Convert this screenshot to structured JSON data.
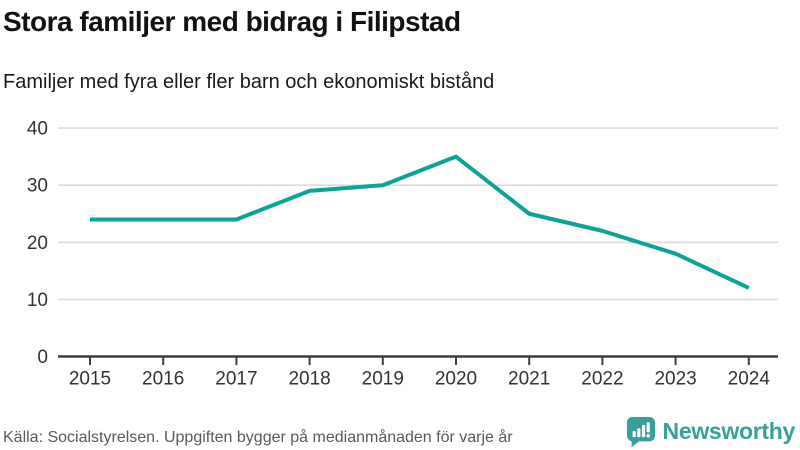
{
  "header": {
    "title": "Stora familjer med bidrag i Filipstad",
    "subtitle": "Familjer med fyra eller fler barn och ekonomiskt bistånd"
  },
  "footer": {
    "source": "Källa: Socialstyrelsen. Uppgiften bygger på medianmånaden för varje år",
    "logo_text": "Newsworthy"
  },
  "colors": {
    "line": "#0AA396",
    "brand": "#38A09A",
    "grid": "#DCDCDC",
    "axis": "#3D3D3D",
    "tick_label": "#333333",
    "title_text": "#111111",
    "source_text": "#595959"
  },
  "chart_data": {
    "type": "line",
    "title": "Stora familjer med bidrag i Filipstad",
    "subtitle": "Familjer med fyra eller fler barn och ekonomiskt bistånd",
    "categories": [
      "2015",
      "2016",
      "2017",
      "2018",
      "2019",
      "2020",
      "2021",
      "2022",
      "2023",
      "2024"
    ],
    "series": [
      {
        "name": "Familjer med fyra eller fler barn och ekonomiskt bistånd",
        "values": [
          24,
          24,
          24,
          29,
          30,
          35,
          25,
          22,
          18,
          12
        ]
      }
    ],
    "xlabel": "",
    "ylabel": "",
    "ylim": [
      0,
      40
    ],
    "yticks": [
      0,
      10,
      20,
      30,
      40
    ],
    "grid": "horizontal",
    "legend": "none",
    "line_color": "#0AA396"
  }
}
